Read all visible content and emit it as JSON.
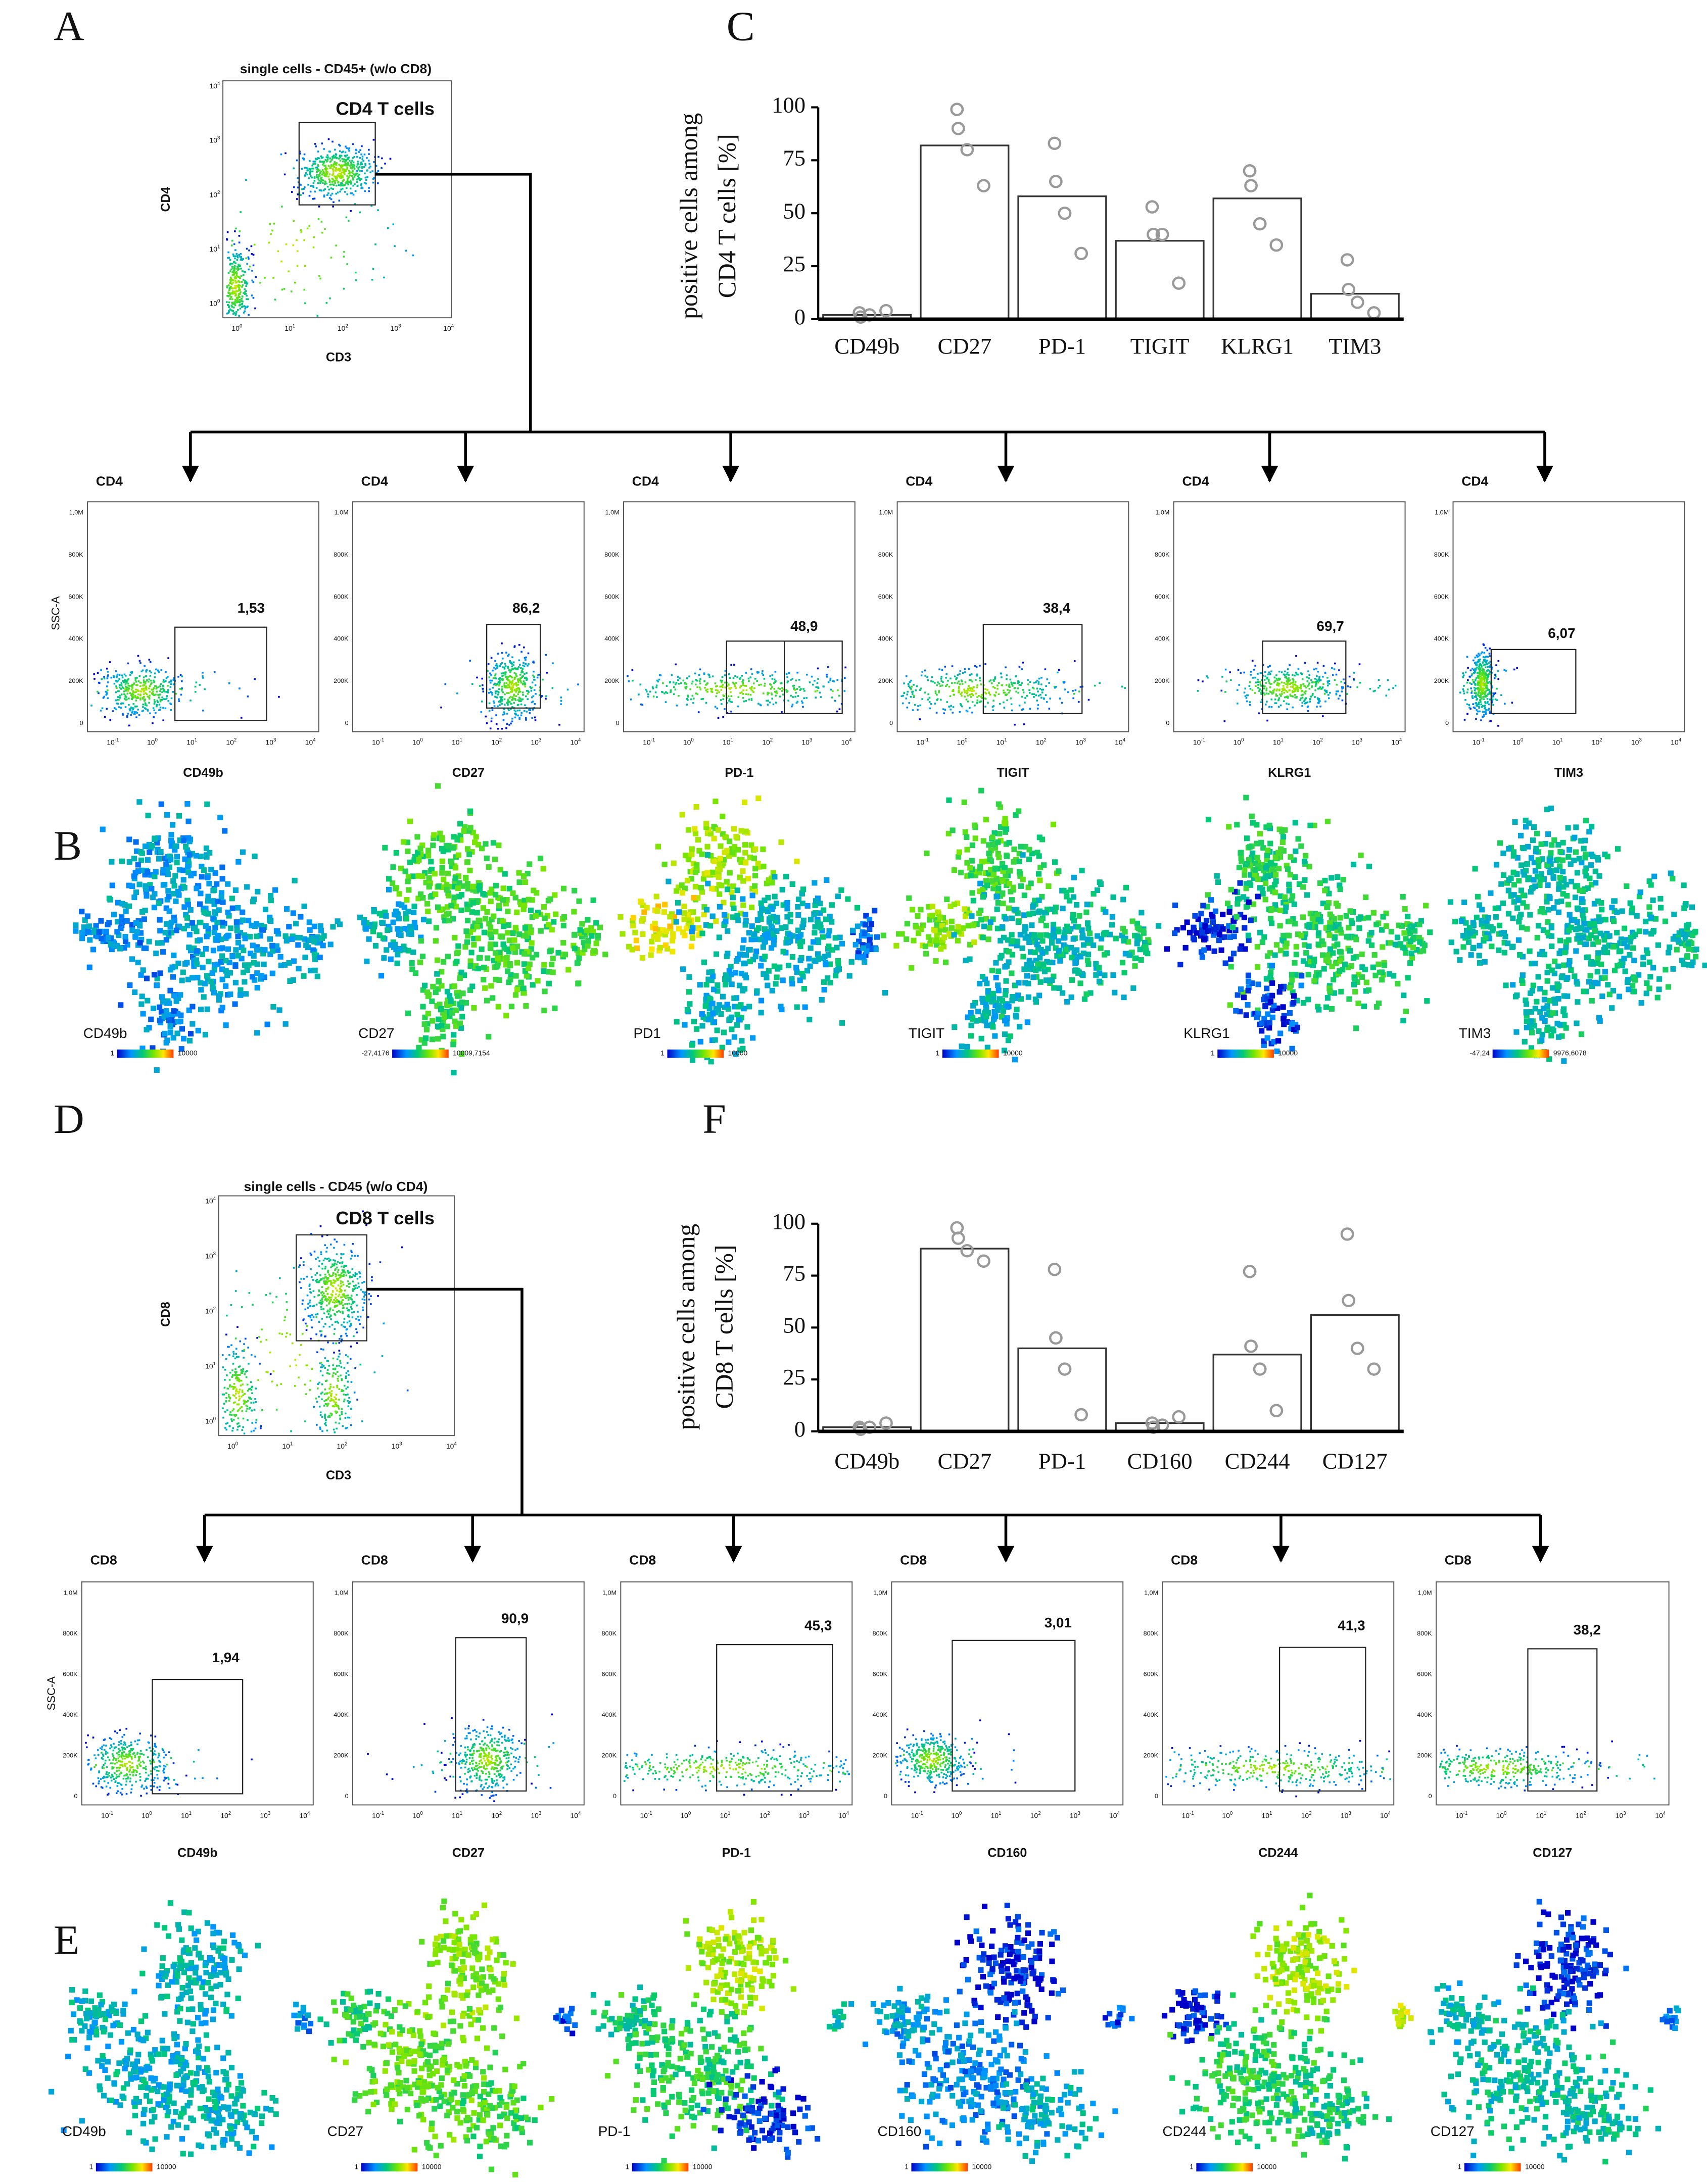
{
  "panel_labels": [
    "A",
    "B",
    "C",
    "D",
    "E",
    "F"
  ],
  "gating": [
    {
      "title": "single cells - CD45+ (w/o CD8)",
      "population": "CD4 T cells",
      "y_label": "CD4",
      "x_label": "CD3"
    },
    {
      "title": "single cells - CD45 (w/o CD4)",
      "population": "CD8 T cells",
      "y_label": "CD8",
      "x_label": "CD3"
    }
  ],
  "log_ticks": {
    "base": "10",
    "exponents": [
      "-1",
      "0",
      "1",
      "2",
      "3",
      "4"
    ]
  },
  "ssc": {
    "label": "SSC-A",
    "ticks": [
      "0",
      "200K",
      "400K",
      "600K",
      "800K",
      "1,0M"
    ]
  },
  "flow_rows": [
    {
      "parent": "CD4",
      "plots": [
        {
          "marker": "CD49b",
          "percent": "1,53"
        },
        {
          "marker": "CD27",
          "percent": "86,2"
        },
        {
          "marker": "PD-1",
          "percent": "48,9"
        },
        {
          "marker": "TIGIT",
          "percent": "38,4"
        },
        {
          "marker": "KLRG1",
          "percent": "69,7"
        },
        {
          "marker": "TIM3",
          "percent": "6,07"
        }
      ]
    },
    {
      "parent": "CD8",
      "plots": [
        {
          "marker": "CD49b",
          "percent": "1,94"
        },
        {
          "marker": "CD27",
          "percent": "90,9"
        },
        {
          "marker": "PD-1",
          "percent": "45,3"
        },
        {
          "marker": "CD160",
          "percent": "3,01"
        },
        {
          "marker": "CD244",
          "percent": "41,3"
        },
        {
          "marker": "CD127",
          "percent": "38,2"
        }
      ]
    }
  ],
  "tsne_rows": [
    {
      "maps": [
        {
          "label": "CD49b",
          "scale_min": "1",
          "scale_max": "10000"
        },
        {
          "label": "CD27",
          "scale_min": "-27,4176",
          "scale_max": "10009,7154"
        },
        {
          "label": "PD1",
          "scale_min": "1",
          "scale_max": "10000"
        },
        {
          "label": "TIGIT",
          "scale_min": "1",
          "scale_max": "10000"
        },
        {
          "label": "KLRG1",
          "scale_min": "1",
          "scale_max": "10000"
        },
        {
          "label": "TIM3",
          "scale_min": "-47,24",
          "scale_max": "9976,6078"
        }
      ]
    },
    {
      "maps": [
        {
          "label": "CD49b",
          "scale_min": "1",
          "scale_max": "10000"
        },
        {
          "label": "CD27",
          "scale_min": "1",
          "scale_max": "10000"
        },
        {
          "label": "PD-1",
          "scale_min": "1",
          "scale_max": "10000"
        },
        {
          "label": "CD160",
          "scale_min": "1",
          "scale_max": "10000"
        },
        {
          "label": "CD244",
          "scale_min": "1",
          "scale_max": "10000"
        },
        {
          "label": "CD127",
          "scale_min": "1",
          "scale_max": "10000"
        }
      ]
    }
  ],
  "chart_data": [
    {
      "type": "bar",
      "ylabel": [
        "positive cells among",
        "CD4 T cells [%]"
      ],
      "categories": [
        "CD49b",
        "CD27",
        "PD-1",
        "TIGIT",
        "KLRG1",
        "TIM3"
      ],
      "values": [
        2,
        82,
        58,
        37,
        57,
        12
      ],
      "replicates": [
        [
          3,
          1,
          2,
          4
        ],
        [
          99,
          90,
          80,
          63
        ],
        [
          83,
          65,
          50,
          31
        ],
        [
          53,
          40,
          40,
          17
        ],
        [
          70,
          63,
          45,
          35
        ],
        [
          28,
          14,
          8,
          3
        ]
      ],
      "color": "#ffffff",
      "point_color": "#999999",
      "ylim": [
        0,
        100
      ],
      "yticks": [
        0,
        25,
        50,
        75,
        100
      ]
    },
    {
      "type": "bar",
      "ylabel": [
        "positive cells among",
        "CD8 T cells [%]"
      ],
      "categories": [
        "CD49b",
        "CD27",
        "PD-1",
        "CD160",
        "CD244",
        "CD127"
      ],
      "values": [
        2,
        88,
        40,
        4,
        37,
        56
      ],
      "replicates": [
        [
          2,
          1,
          2,
          4
        ],
        [
          98,
          93,
          87,
          82
        ],
        [
          78,
          45,
          30,
          8
        ],
        [
          4,
          2,
          3,
          7
        ],
        [
          77,
          41,
          30,
          10
        ],
        [
          95,
          63,
          40,
          30
        ]
      ],
      "color": "#ffffff",
      "point_color": "#999999",
      "ylim": [
        0,
        100
      ],
      "yticks": [
        0,
        25,
        50,
        75,
        100
      ]
    }
  ]
}
